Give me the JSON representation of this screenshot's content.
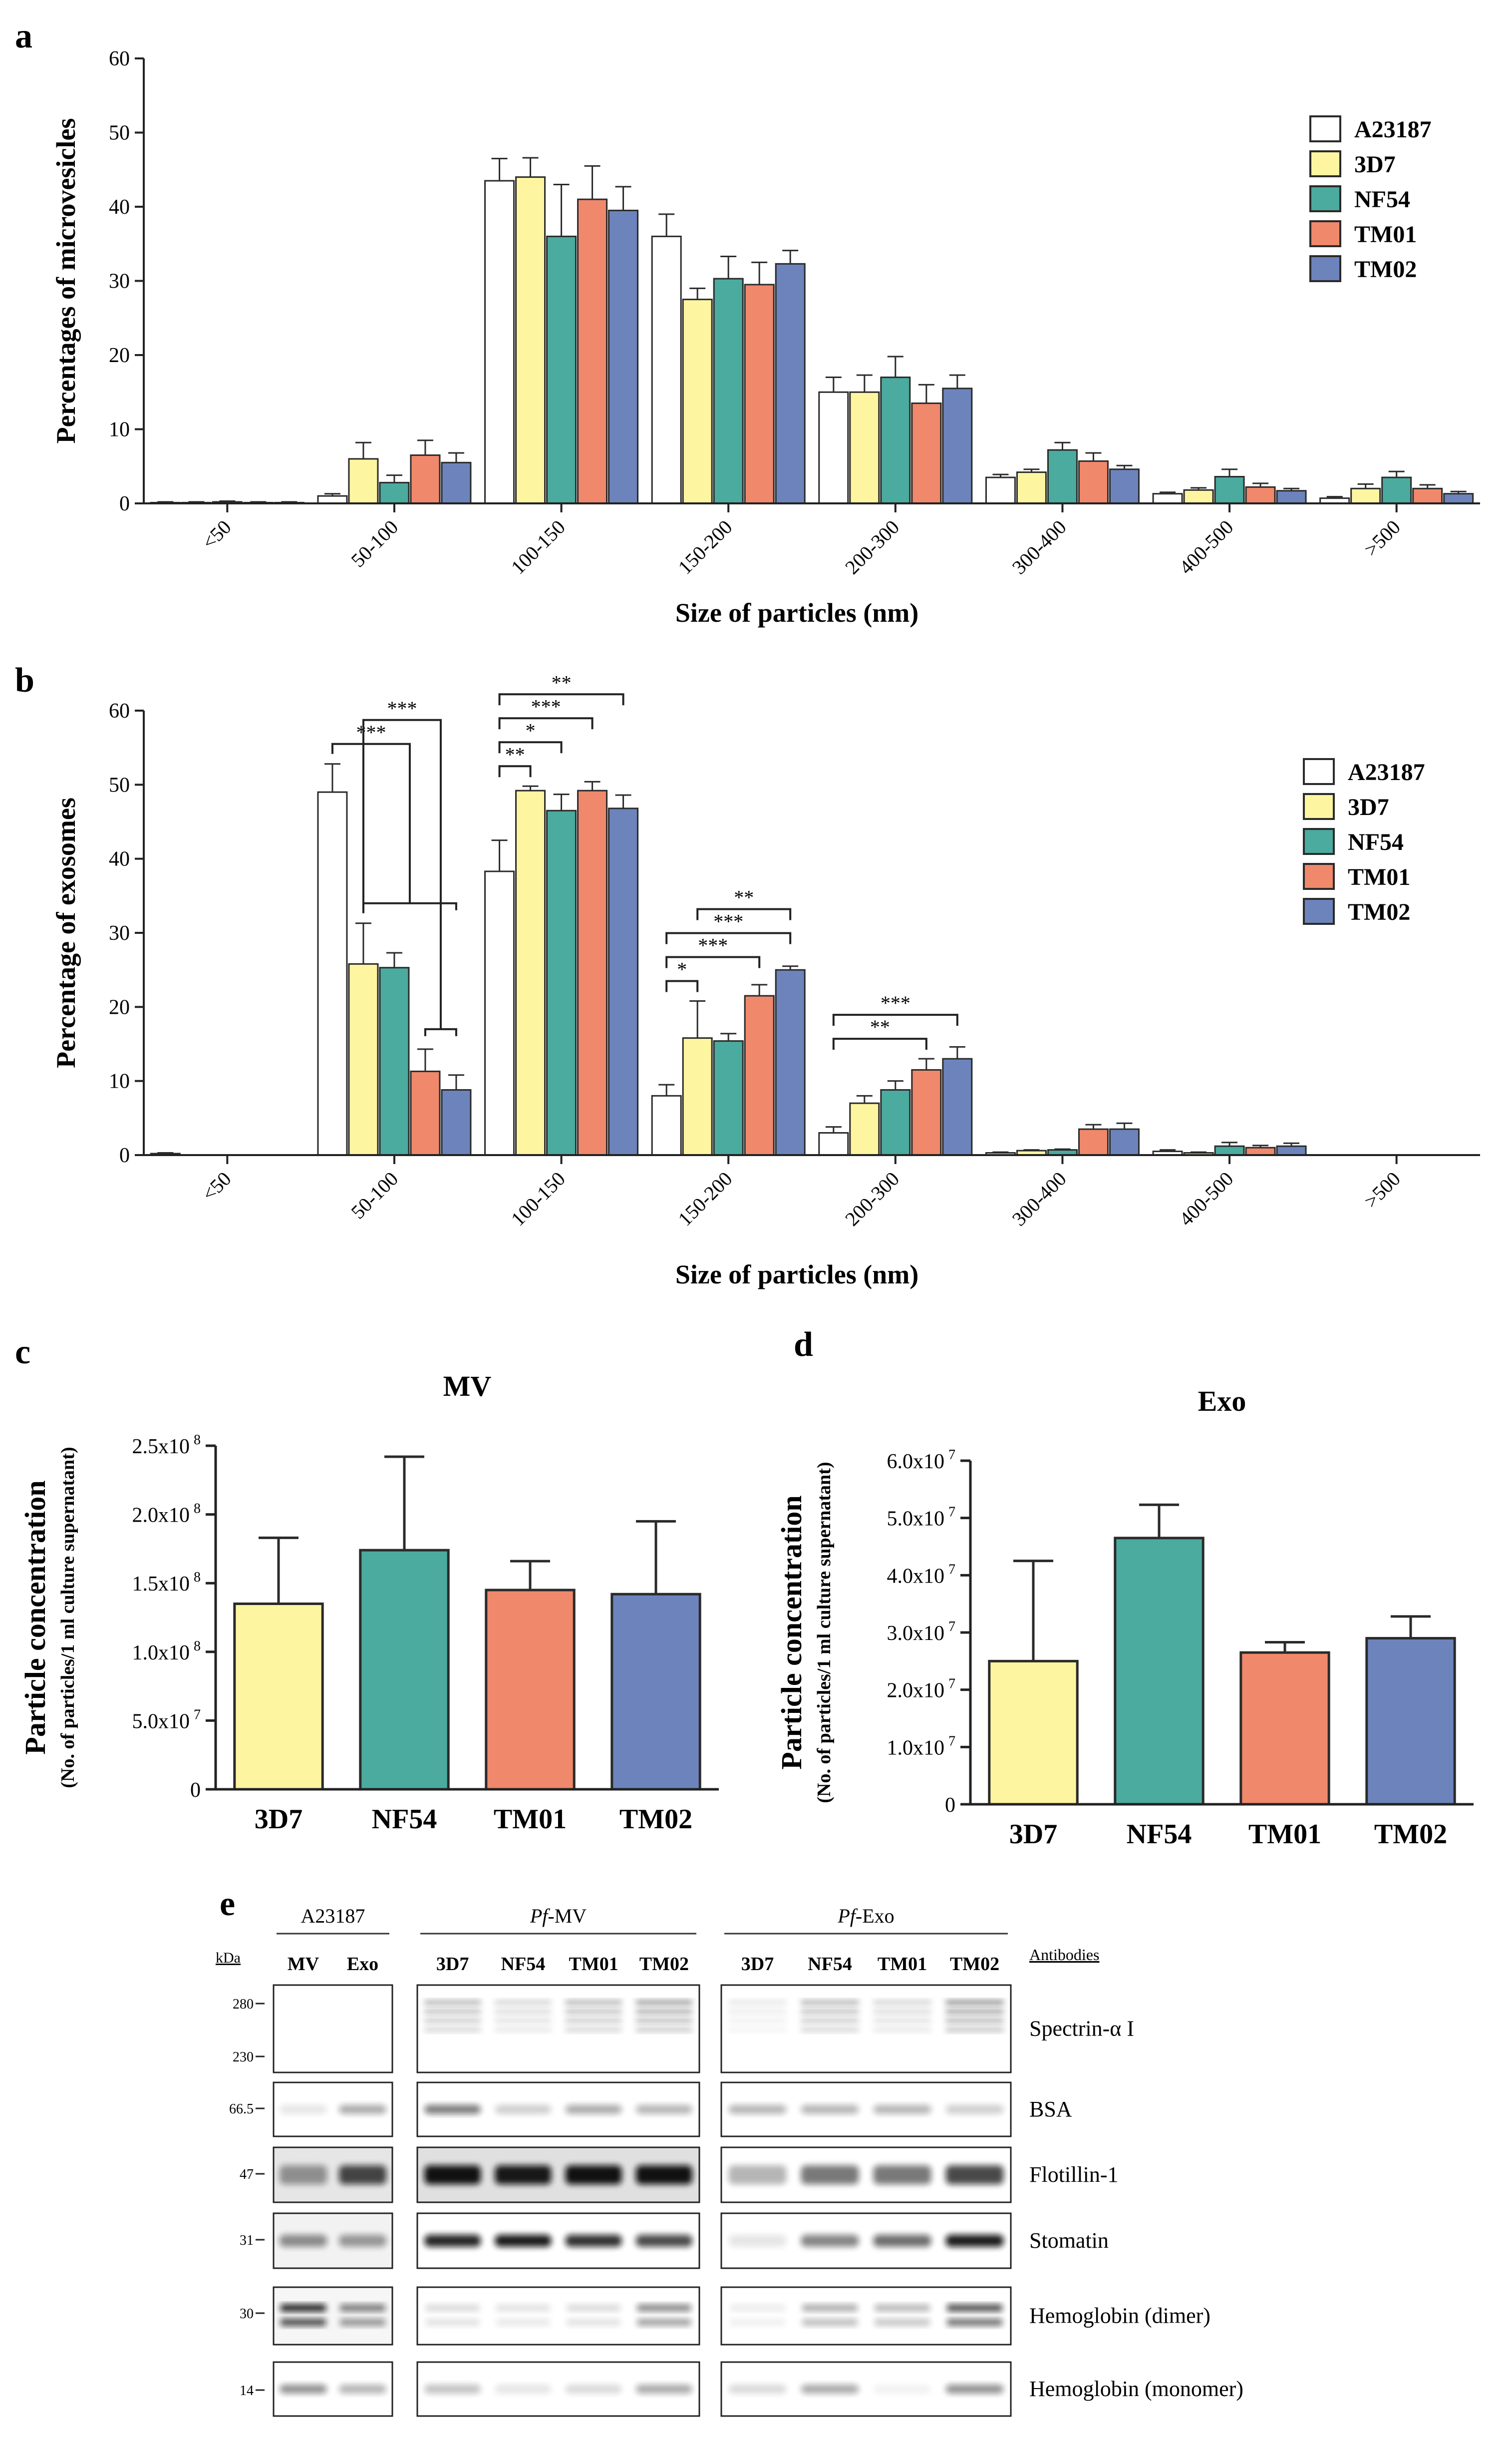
{
  "colors": {
    "A23187": "#ffffff",
    "3D7": "#fdf5a0",
    "NF54": "#4aab9e",
    "TM01": "#f0886b",
    "TM02": "#6c84bb"
  },
  "chart_data": [
    {
      "id": "a",
      "panel_letter": "a",
      "type": "bar",
      "title": "",
      "xlabel": "Size of particles (nm)",
      "ylabel": "Percentages of microvesicles",
      "ylim": [
        0,
        60
      ],
      "yticks": [
        "0",
        "10",
        "20",
        "30",
        "40",
        "50",
        "60"
      ],
      "categories": [
        "<50",
        "50-100",
        "100-150",
        "150-200",
        "200-300",
        "300-400",
        "400-500",
        ">500"
      ],
      "series": [
        {
          "name": "A23187",
          "values": [
            0.1,
            1.0,
            43.5,
            36.0,
            15.0,
            3.5,
            1.3,
            0.7
          ],
          "errors": [
            0.1,
            0.3,
            3.0,
            3.0,
            2.0,
            0.4,
            0.2,
            0.2
          ]
        },
        {
          "name": "3D7",
          "values": [
            0.1,
            6.0,
            44.0,
            27.5,
            15.0,
            4.2,
            1.8,
            2.0
          ],
          "errors": [
            0.1,
            2.2,
            2.6,
            1.5,
            2.3,
            0.4,
            0.3,
            0.6
          ]
        },
        {
          "name": "NF54",
          "values": [
            0.2,
            2.8,
            36.0,
            30.3,
            17.0,
            7.2,
            3.6,
            3.5
          ],
          "errors": [
            0.1,
            1.0,
            7.0,
            3.0,
            2.8,
            1.0,
            1.0,
            0.8
          ]
        },
        {
          "name": "TM01",
          "values": [
            0.1,
            6.5,
            41.0,
            29.5,
            13.5,
            5.7,
            2.2,
            2.0
          ],
          "errors": [
            0.1,
            2.0,
            4.5,
            3.0,
            2.5,
            1.1,
            0.5,
            0.5
          ]
        },
        {
          "name": "TM02",
          "values": [
            0.1,
            5.5,
            39.5,
            32.3,
            15.5,
            4.6,
            1.7,
            1.3
          ],
          "errors": [
            0.1,
            1.3,
            3.2,
            1.8,
            1.8,
            0.5,
            0.3,
            0.3
          ]
        }
      ],
      "legend": [
        "A23187",
        "3D7",
        "NF54",
        "TM01",
        "TM02"
      ]
    },
    {
      "id": "b",
      "panel_letter": "b",
      "type": "bar",
      "title": "",
      "xlabel": "Size of particles (nm)",
      "ylabel": "Percentage of exosomes",
      "ylim": [
        0,
        60
      ],
      "yticks": [
        "0",
        "10",
        "20",
        "30",
        "40",
        "50",
        "60"
      ],
      "categories": [
        "<50",
        "50-100",
        "100-150",
        "150-200",
        "200-300",
        "300-400",
        "400-500",
        ">500"
      ],
      "series": [
        {
          "name": "A23187",
          "values": [
            0.2,
            49.0,
            38.3,
            8.0,
            3.0,
            0.3,
            0.5,
            0.0
          ],
          "errors": [
            0.1,
            3.8,
            4.2,
            1.5,
            0.8,
            0.1,
            0.2,
            0.0
          ]
        },
        {
          "name": "3D7",
          "values": [
            0.0,
            25.8,
            49.2,
            15.8,
            7.0,
            0.6,
            0.3,
            0.0
          ],
          "errors": [
            0.0,
            5.5,
            0.6,
            5.0,
            1.0,
            0.1,
            0.1,
            0.0
          ]
        },
        {
          "name": "NF54",
          "values": [
            0.0,
            25.3,
            46.5,
            15.4,
            8.8,
            0.7,
            1.2,
            0.0
          ],
          "errors": [
            0.0,
            2.0,
            2.2,
            1.0,
            1.2,
            0.1,
            0.5,
            0.0
          ]
        },
        {
          "name": "TM01",
          "values": [
            0.0,
            11.3,
            49.2,
            21.5,
            11.5,
            3.5,
            1.0,
            0.0
          ],
          "errors": [
            0.0,
            3.0,
            1.2,
            1.5,
            1.5,
            0.6,
            0.3,
            0.0
          ]
        },
        {
          "name": "TM02",
          "values": [
            0.0,
            8.8,
            46.8,
            25.0,
            13.0,
            3.5,
            1.2,
            0.0
          ],
          "errors": [
            0.0,
            2.0,
            1.8,
            0.5,
            1.6,
            0.8,
            0.4,
            0.0
          ]
        }
      ],
      "legend": [
        "A23187",
        "3D7",
        "NF54",
        "TM01",
        "TM02"
      ],
      "significance": [
        {
          "category": "50-100",
          "from": "A23187",
          "to_range": [
            "3D7",
            "TM02"
          ],
          "label": "***"
        },
        {
          "category": "50-100",
          "from": "3D7",
          "to_range": [
            "TM01",
            "TM02"
          ],
          "label": "***"
        },
        {
          "category": "100-150",
          "from": "A23187",
          "to": "3D7",
          "label": "**"
        },
        {
          "category": "100-150",
          "from": "A23187",
          "to": "NF54",
          "label": "*"
        },
        {
          "category": "100-150",
          "from": "A23187",
          "to": "TM01",
          "label": "***"
        },
        {
          "category": "100-150",
          "from": "A23187",
          "to": "TM02",
          "label": "**"
        },
        {
          "category": "150-200",
          "from": "A23187",
          "to": "3D7",
          "label": "*"
        },
        {
          "category": "150-200",
          "from": "A23187",
          "to": "TM01",
          "label": "***"
        },
        {
          "category": "150-200",
          "from": "A23187",
          "to": "TM02",
          "label": "***"
        },
        {
          "category": "150-200",
          "from": "3D7",
          "to": "TM02",
          "label": "**"
        },
        {
          "category": "200-300",
          "from": "A23187",
          "to": "TM01",
          "label": "**"
        },
        {
          "category": "200-300",
          "from": "A23187",
          "to": "TM02",
          "label": "***"
        }
      ]
    },
    {
      "id": "c",
      "panel_letter": "c",
      "type": "bar",
      "title": "MV",
      "ylabel": "Particle concentration",
      "ylabel_sub": "(No. of particles/1 ml culture supernatant)",
      "ylim": [
        0,
        250000000
      ],
      "yticks": [
        {
          "value": 0,
          "base": "0"
        },
        {
          "value": 50000000,
          "base": "5.0x10",
          "exp": "7"
        },
        {
          "value": 100000000,
          "base": "1.0x10",
          "exp": "8"
        },
        {
          "value": 150000000,
          "base": "1.5x10",
          "exp": "8"
        },
        {
          "value": 200000000,
          "base": "2.0x10",
          "exp": "8"
        },
        {
          "value": 250000000,
          "base": "2.5x10",
          "exp": "8"
        }
      ],
      "categories": [
        "3D7",
        "NF54",
        "TM01",
        "TM02"
      ],
      "values": [
        135000000,
        174000000,
        145000000,
        142000000
      ],
      "errors": [
        48000000,
        68000000,
        21000000,
        53000000
      ]
    },
    {
      "id": "d",
      "panel_letter": "d",
      "type": "bar",
      "title": "Exo",
      "ylabel": "Particle concentration",
      "ylabel_sub": "(No. of particles/1 ml culture supernatant)",
      "ylim": [
        0,
        60000000
      ],
      "yticks": [
        {
          "value": 0,
          "base": "0"
        },
        {
          "value": 10000000,
          "base": "1.0x10",
          "exp": "7"
        },
        {
          "value": 20000000,
          "base": "2.0x10",
          "exp": "7"
        },
        {
          "value": 30000000,
          "base": "3.0x10",
          "exp": "7"
        },
        {
          "value": 40000000,
          "base": "4.0x10",
          "exp": "7"
        },
        {
          "value": 50000000,
          "base": "5.0x10",
          "exp": "7"
        },
        {
          "value": 60000000,
          "base": "6.0x10",
          "exp": "7"
        }
      ],
      "categories": [
        "3D7",
        "NF54",
        "TM01",
        "TM02"
      ],
      "values": [
        25000000,
        46500000,
        26500000,
        29000000
      ],
      "errors": [
        17500000,
        5800000,
        1800000,
        3800000
      ]
    }
  ],
  "blot": {
    "panel_letter": "e",
    "kda_label": "kDa",
    "antibodies_label": "Antibodies",
    "groups": [
      {
        "title": "A23187",
        "lanes": [
          "MV",
          "Exo"
        ]
      },
      {
        "title_italic": "Pf",
        "title_rest": "-MV",
        "lanes": [
          "3D7",
          "NF54",
          "TM01",
          "TM02"
        ]
      },
      {
        "title_italic": "Pf",
        "title_rest": "-Exo",
        "lanes": [
          "3D7",
          "NF54",
          "TM01",
          "TM02"
        ]
      }
    ],
    "rows": [
      {
        "antibody": "Spectrin-α I",
        "markers": [
          "280",
          "230"
        ]
      },
      {
        "antibody": "BSA",
        "markers": [
          "66.5"
        ]
      },
      {
        "antibody": "Flotillin-1",
        "markers": [
          "47"
        ]
      },
      {
        "antibody": "Stomatin",
        "markers": [
          "31"
        ]
      },
      {
        "antibody": "Hemoglobin (dimer)",
        "markers": [
          "30"
        ]
      },
      {
        "antibody": "Hemoglobin (monomer)",
        "markers": [
          "14"
        ]
      }
    ]
  }
}
